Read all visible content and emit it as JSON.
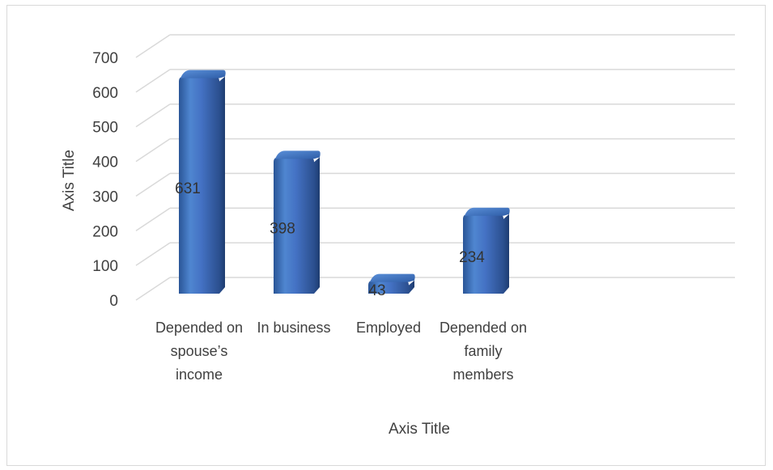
{
  "chart_data": {
    "type": "bar",
    "style": "3d-cylinder",
    "categories": [
      "Depended on spouse’s income",
      "In business",
      "Employed",
      "Depended on family members"
    ],
    "values": [
      631,
      398,
      43,
      234
    ],
    "data_labels": [
      "631",
      "398",
      "43",
      "234"
    ],
    "ylim": [
      0,
      700
    ],
    "y_ticks": [
      "0",
      "100",
      "200",
      "300",
      "400",
      "500",
      "600",
      "700"
    ],
    "xlabel": "Axis Title",
    "ylabel": "Axis Title",
    "grid": true,
    "legend": "none",
    "bar_color": "#4472c4"
  }
}
